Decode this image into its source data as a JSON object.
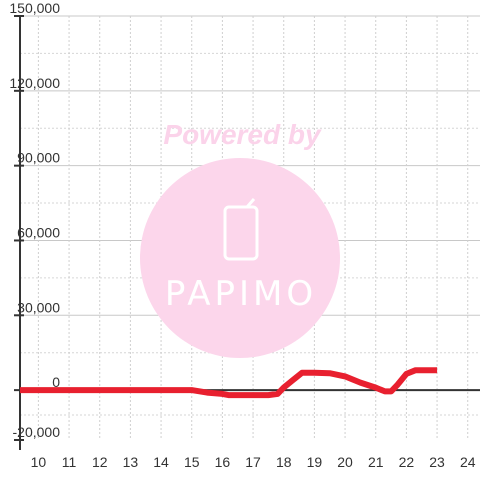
{
  "chart_data": {
    "type": "line",
    "title": "",
    "xlabel": "",
    "ylabel": "",
    "xlim": [
      9.4,
      24.4
    ],
    "ylim": [
      -20000,
      150000
    ],
    "x_ticks": [
      10,
      11,
      12,
      13,
      14,
      15,
      16,
      17,
      18,
      19,
      20,
      21,
      22,
      23,
      24
    ],
    "y_ticks": [
      -20000,
      0,
      30000,
      60000,
      90000,
      120000,
      150000
    ],
    "y_tick_labels": [
      "-20,000",
      "0",
      "30,000",
      "60,000",
      "90,000",
      "120,000",
      "150,000"
    ],
    "grid": true,
    "series": [
      {
        "color": "#e8202f",
        "x": [
          9.4,
          10,
          11,
          12,
          13,
          14,
          15,
          15.5,
          16,
          16.2,
          16.5,
          17,
          17.5,
          17.8,
          18,
          18.3,
          18.6,
          19,
          19.5,
          20,
          20.5,
          21,
          21.3,
          21.5,
          21.7,
          22,
          22.3,
          22.6,
          23
        ],
        "y": [
          0,
          0,
          0,
          0,
          0,
          0,
          0,
          -1000,
          -1500,
          -2000,
          -2000,
          -2000,
          -2000,
          -1500,
          1000,
          4000,
          7000,
          7000,
          6800,
          5500,
          3000,
          1000,
          -500,
          -500,
          2000,
          6500,
          8000,
          8000,
          8000
        ]
      }
    ]
  },
  "watermark": {
    "text": "Powered by",
    "logo": "PAPIMO",
    "circle_color": "#fcd6eb",
    "text_color": "#fbd3ea"
  }
}
